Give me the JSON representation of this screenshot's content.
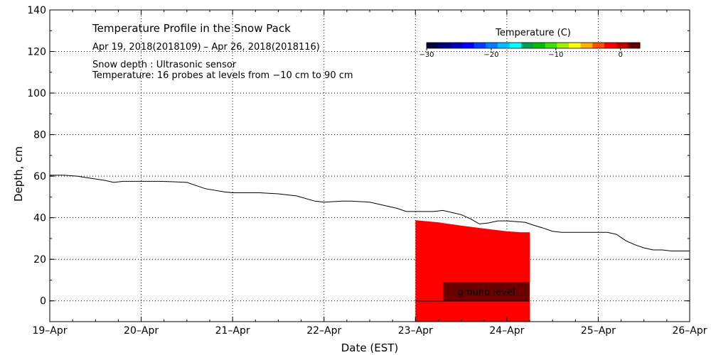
{
  "chart_data": {
    "type": "line",
    "title": "Temperature Profile in the Snow Pack",
    "subtitle": "Apr 19, 2018(2018109) – Apr 26, 2018(2018116)",
    "notes": [
      "Snow depth : Ultrasonic sensor",
      "Temperature: 16 probes at levels from −10 cm to 90 cm"
    ],
    "xlabel": "Date (EST)",
    "ylabel": "Depth, cm",
    "x_ticks": [
      "19–Apr",
      "20–Apr",
      "21–Apr",
      "22–Apr",
      "23–Apr",
      "24–Apr",
      "25–Apr",
      "26–Apr"
    ],
    "y_ticks": [
      "0",
      "20",
      "40",
      "60",
      "80",
      "100",
      "120",
      "140"
    ],
    "xlim": [
      0,
      7
    ],
    "ylim": [
      -10,
      140
    ],
    "grid": true,
    "x_unit_note": "days after 19-Apr 00:00",
    "snow_depth": {
      "x": [
        0,
        0.15,
        0.3,
        0.45,
        0.6,
        0.7,
        0.8,
        1.0,
        1.2,
        1.35,
        1.5,
        1.6,
        1.7,
        1.9,
        2.0,
        2.3,
        2.5,
        2.6,
        2.7,
        2.9,
        3.0,
        3.2,
        3.3,
        3.5,
        3.6,
        3.8,
        3.9,
        4.0,
        4.2,
        4.3,
        4.5,
        4.6,
        4.7,
        4.8,
        4.9,
        5.0,
        5.2,
        5.3,
        5.4,
        5.5,
        5.6,
        5.7,
        5.8,
        6.0,
        6.1,
        6.2,
        6.3,
        6.4,
        6.5,
        6.6,
        6.7,
        6.8,
        6.9,
        7.0
      ],
      "y": [
        60.5,
        60.5,
        60.0,
        59.0,
        58.0,
        57.0,
        57.5,
        57.5,
        57.5,
        57.3,
        57.0,
        55.5,
        54.0,
        52.5,
        52.0,
        52.0,
        51.5,
        51.0,
        50.5,
        48.0,
        47.5,
        48.0,
        48.0,
        47.5,
        46.5,
        44.5,
        43.0,
        43.0,
        43.0,
        43.5,
        41.5,
        39.5,
        37.0,
        37.5,
        38.5,
        38.5,
        37.8,
        36.3,
        35.0,
        33.5,
        33.0,
        33.0,
        33.0,
        33.0,
        33.0,
        32.0,
        29.0,
        27.0,
        25.5,
        24.5,
        24.5,
        24.0,
        24.0,
        24.0
      ]
    },
    "temperature_profile": {
      "x_start": 4.0,
      "x_end": 5.25,
      "top_depth": [
        38.8,
        37.8,
        36.2,
        34.8,
        33.5,
        33.0,
        33.0
      ],
      "top_x": [
        4.0,
        4.25,
        4.5,
        4.75,
        5.0,
        5.15,
        5.25
      ],
      "bottom_depth": -10,
      "color": "#ff0000"
    },
    "annotation_box": {
      "label": "ground level",
      "x": [
        4.3,
        5.25
      ],
      "y": [
        0,
        9
      ],
      "color": "#6b0000"
    },
    "ground_line_y": 0,
    "colorbar": {
      "title": "Temperature (C)",
      "range": [
        -30,
        3
      ],
      "ticks": [
        "−30",
        "−20",
        "−10",
        "0"
      ],
      "tick_values": [
        -30,
        -20,
        -10,
        0
      ],
      "colors": [
        "#000040",
        "#00007a",
        "#0000b8",
        "#0000ff",
        "#0040ff",
        "#0080ff",
        "#00c0ff",
        "#00ffff",
        "#00a050",
        "#00c000",
        "#40e000",
        "#a0f000",
        "#ffff00",
        "#ffb000",
        "#ff5000",
        "#ff0000",
        "#c00000",
        "#600000"
      ]
    }
  }
}
